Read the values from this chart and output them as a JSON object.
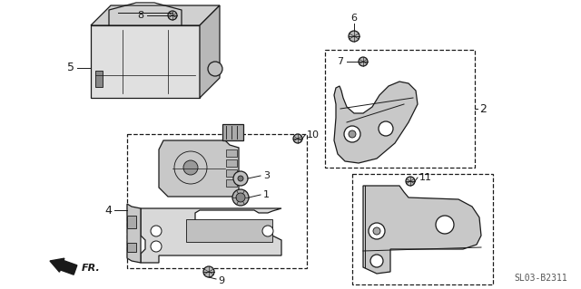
{
  "background_color": "#ffffff",
  "diagram_code": "SL03-B2311",
  "dark": "#1a1a1a",
  "gray_fill": "#d0d0d0",
  "light_fill": "#e8e8e8"
}
